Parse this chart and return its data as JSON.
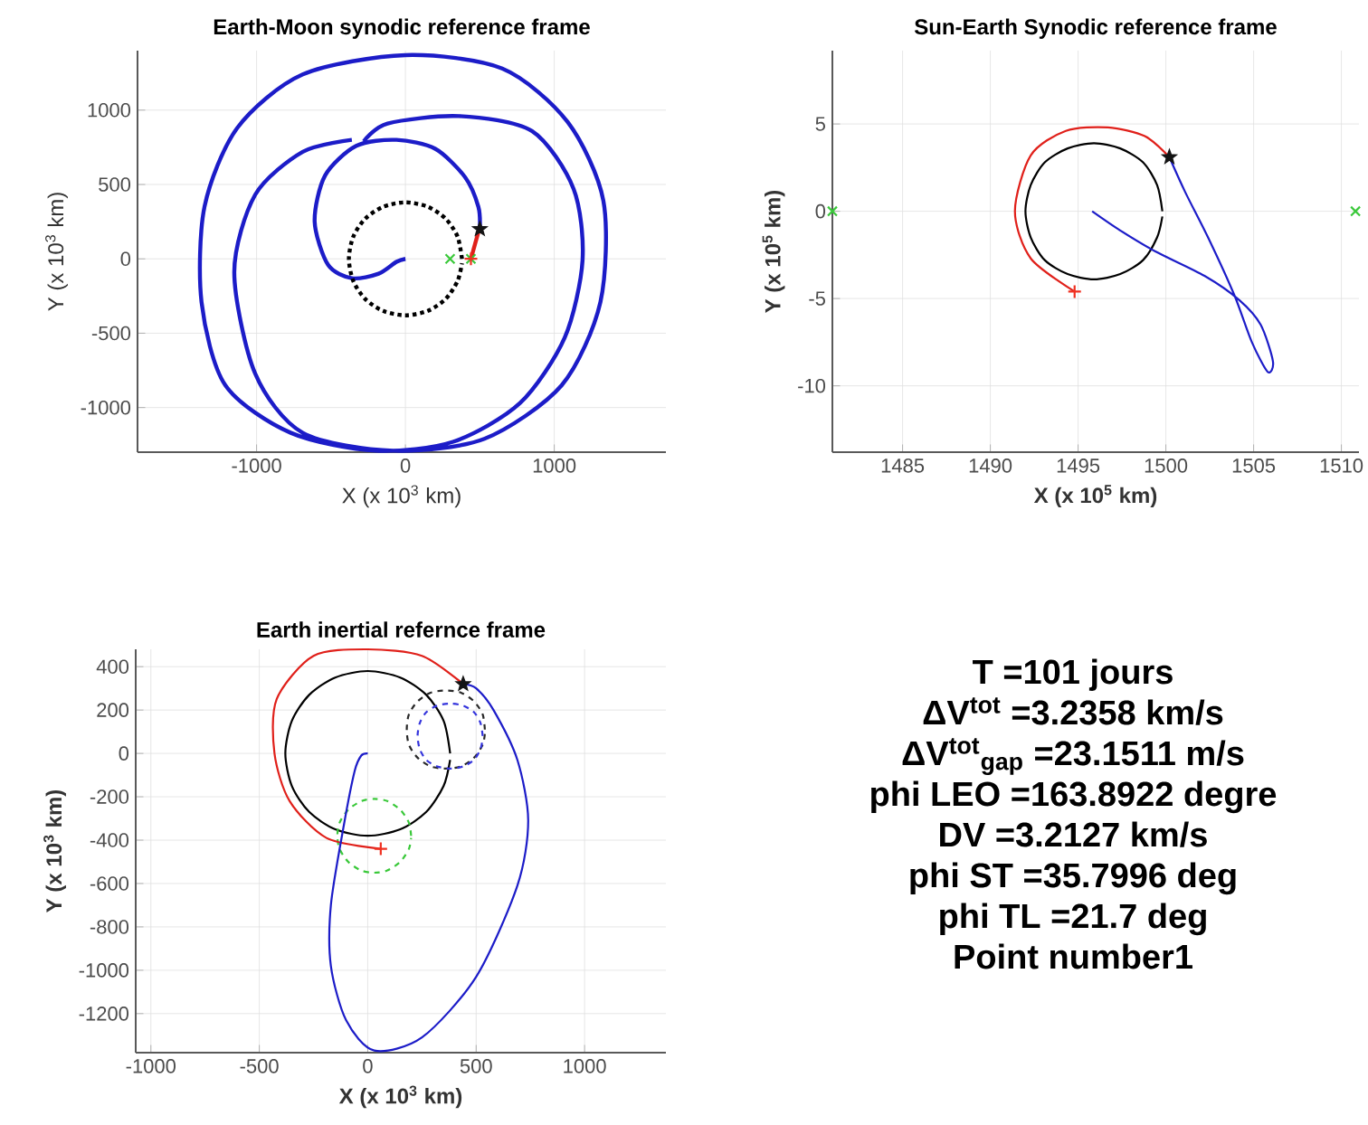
{
  "chart_data": [
    {
      "type": "line",
      "title": "Earth-Moon synodic reference frame",
      "xlabel": "X (x 10$^{3}$ km)",
      "ylabel": "Y (x 10$^{3}$ km)",
      "xlim": [
        -1800,
        1750
      ],
      "ylim": [
        -1300,
        1400
      ],
      "xticks": [
        -1000,
        0,
        1000
      ],
      "yticks": [
        -1000,
        -500,
        0,
        500,
        1000
      ],
      "grid": true,
      "series": [
        {
          "type": "line",
          "color": "#1c1cc8",
          "x": [
            0,
            -60,
            -180,
            -360,
            -520,
            -610,
            -540,
            -330,
            -60,
            200,
            400,
            490,
            500
          ],
          "values": [
            0,
            -20,
            -100,
            -130,
            -40,
            250,
            560,
            760,
            800,
            740,
            550,
            350,
            200
          ]
        },
        {
          "type": "line",
          "color": "#1c1cc8",
          "x": [
            -280,
            -120,
            360,
            850,
            1130,
            1190,
            1070,
            770,
            320,
            -200,
            -770,
            -1210,
            -1370,
            -1350,
            -1130,
            -690,
            0,
            650,
            1090,
            1330,
            1310,
            1050,
            530,
            -80,
            -690,
            -1010,
            -1150,
            -1010,
            -690,
            -360
          ],
          "values": [
            790,
            910,
            960,
            860,
            470,
            -10,
            -530,
            -970,
            -1230,
            -1290,
            -1170,
            -850,
            -290,
            350,
            880,
            1240,
            1370,
            1280,
            920,
            390,
            -290,
            -850,
            -1210,
            -1290,
            -1170,
            -770,
            -90,
            430,
            720,
            800
          ]
        },
        {
          "type": "line",
          "color": "#000000",
          "line_style": "dotted",
          "x": [
            380,
            350,
            270,
            150,
            0,
            -150,
            -270,
            -350,
            -380,
            -350,
            -270,
            -150,
            0,
            150,
            270,
            350,
            380
          ],
          "values": [
            0,
            150,
            270,
            350,
            380,
            350,
            270,
            150,
            0,
            -150,
            -270,
            -350,
            -380,
            -350,
            -270,
            -150,
            -30
          ]
        },
        {
          "type": "line",
          "color": "#e0201a",
          "x": [
            440,
            490
          ],
          "values": [
            0,
            180
          ]
        },
        {
          "type": "scatter",
          "color": "#39c839",
          "marker": "cross",
          "x": [
            300,
            440
          ],
          "values": [
            0,
            0
          ]
        },
        {
          "type": "scatter",
          "color": "#f03020",
          "marker": "plus",
          "x": [
            440
          ],
          "values": [
            0
          ]
        },
        {
          "type": "scatter",
          "color": "#141414",
          "marker": "star",
          "x": [
            500
          ],
          "values": [
            200
          ]
        }
      ]
    },
    {
      "type": "line",
      "title": "Sun-Earth Synodic reference frame",
      "xlabel": "X (x 10$^{5}$ km)",
      "ylabel": "Y (x 10$^{5}$ km)",
      "xlim": [
        1481,
        1511
      ],
      "ylim": [
        -13.8,
        9.2
      ],
      "xticks": [
        1485,
        1490,
        1495,
        1500,
        1505,
        1510
      ],
      "yticks": [
        -10,
        -5,
        0,
        5
      ],
      "grid": true,
      "series": [
        {
          "type": "line",
          "color": "#000000",
          "x": [
            1499.8,
            1499.5,
            1498.7,
            1497.4,
            1495.9,
            1494.4,
            1493.1,
            1492.3,
            1492.0,
            1492.3,
            1493.1,
            1494.4,
            1495.9,
            1497.4,
            1498.7,
            1499.5,
            1499.8
          ],
          "values": [
            0,
            1.5,
            2.8,
            3.6,
            3.9,
            3.6,
            2.8,
            1.5,
            0,
            -1.5,
            -2.8,
            -3.6,
            -3.9,
            -3.6,
            -2.8,
            -1.5,
            -0.3
          ]
        },
        {
          "type": "line",
          "color": "#e0201a",
          "x": [
            1494.8,
            1492.3,
            1491.4,
            1492.3,
            1494.3,
            1496.7,
            1498.8,
            1500.2
          ],
          "values": [
            -4.6,
            -2.7,
            0,
            3.2,
            4.6,
            4.8,
            4.3,
            3.1
          ]
        },
        {
          "type": "line",
          "color": "#1c1cc8",
          "x": [
            1500.2,
            1501.1,
            1502.5,
            1503.9,
            1504.9,
            1505.8,
            1506.1,
            1505.4,
            1504.2,
            1502.2,
            1499.4,
            1497.4,
            1495.8
          ],
          "values": [
            3.1,
            1.1,
            -1.7,
            -4.8,
            -7.5,
            -9.2,
            -8.6,
            -6.5,
            -5.1,
            -3.7,
            -2.3,
            -1.1,
            0
          ]
        },
        {
          "type": "scatter",
          "color": "#f03020",
          "marker": "plus",
          "x": [
            1494.8
          ],
          "values": [
            -4.6
          ]
        },
        {
          "type": "scatter",
          "color": "#141414",
          "marker": "star",
          "x": [
            1500.2
          ],
          "values": [
            3.1
          ]
        },
        {
          "type": "scatter",
          "color": "#39c839",
          "marker": "cross",
          "x": [
            1481,
            1510.8
          ],
          "values": [
            0,
            0
          ]
        }
      ]
    },
    {
      "type": "line",
      "title": "Earth inertial refernce frame",
      "xlabel": "X (x 10$^{3}$ km)",
      "ylabel": "Y (x 10$^{3}$ km)",
      "xlim": [
        -1070,
        1375
      ],
      "ylim": [
        -1380,
        480
      ],
      "xticks": [
        -1000,
        -500,
        0,
        500,
        1000
      ],
      "yticks": [
        -1200,
        -1000,
        -800,
        -600,
        -400,
        -200,
        0,
        200,
        400
      ],
      "grid": true,
      "series": [
        {
          "type": "line",
          "color": "#000000",
          "x": [
            380,
            350,
            270,
            150,
            0,
            -150,
            -270,
            -350,
            -380,
            -350,
            -270,
            -150,
            0,
            150,
            270,
            350,
            380
          ],
          "values": [
            0,
            150,
            270,
            350,
            380,
            350,
            270,
            150,
            0,
            -150,
            -270,
            -350,
            -380,
            -350,
            -270,
            -150,
            -30
          ]
        },
        {
          "type": "line",
          "color": "#282828",
          "line_style": "dashed",
          "x": [
            540,
            530,
            490,
            430,
            360,
            290,
            230,
            190,
            180,
            190,
            230,
            290,
            360,
            430,
            490,
            530,
            540
          ],
          "values": [
            110,
            180,
            240,
            280,
            290,
            280,
            240,
            180,
            110,
            40,
            -20,
            -60,
            -70,
            -60,
            -20,
            40,
            90
          ]
        },
        {
          "type": "line",
          "color": "#3434dc",
          "line_style": "dashed",
          "x": [
            530,
            520,
            490,
            440,
            380,
            320,
            270,
            240,
            230,
            240,
            270,
            320,
            380,
            440,
            490,
            520,
            530
          ],
          "values": [
            80,
            140,
            190,
            220,
            230,
            220,
            190,
            140,
            80,
            20,
            -30,
            -60,
            -70,
            -60,
            -30,
            20,
            70
          ]
        },
        {
          "type": "line",
          "color": "#39c839",
          "line_style": "dashed",
          "x": [
            200,
            190,
            150,
            90,
            30,
            -30,
            -90,
            -130,
            -140,
            -130,
            -90,
            -30,
            30,
            90,
            150,
            190,
            200
          ],
          "values": [
            -380,
            -320,
            -260,
            -220,
            -210,
            -220,
            -260,
            -320,
            -380,
            -440,
            -500,
            -540,
            -550,
            -540,
            -500,
            -440,
            -390
          ]
        },
        {
          "type": "line",
          "color": "#e0201a",
          "x": [
            440,
            250,
            0,
            -250,
            -420,
            -430,
            -360,
            -190,
            60
          ],
          "values": [
            320,
            450,
            480,
            450,
            250,
            0,
            -220,
            -390,
            -440
          ]
        },
        {
          "type": "line",
          "color": "#1c1cc8",
          "x": [
            0,
            -30,
            -60,
            -110,
            -170,
            -170,
            -100,
            30,
            250,
            500,
            690,
            740,
            690,
            580,
            500,
            440
          ],
          "values": [
            0,
            -10,
            -80,
            -330,
            -700,
            -980,
            -1230,
            -1370,
            -1310,
            -1030,
            -610,
            -310,
            -30,
            200,
            300,
            320
          ]
        },
        {
          "type": "scatter",
          "color": "#f03020",
          "marker": "plus",
          "x": [
            60
          ],
          "values": [
            -440
          ]
        },
        {
          "type": "scatter",
          "color": "#141414",
          "marker": "star",
          "x": [
            440
          ],
          "values": [
            320
          ]
        }
      ]
    },
    {
      "type": "other",
      "annotations": [
        "T =101 jours",
        "ΔV$^{tot}$ =3.2358 km/s",
        "ΔV$^{tot}$$_{gap}$ =23.1511 m/s",
        "phi LEO =163.8922 degre",
        "DV =3.2127 km/s",
        "phi ST =35.7996 deg",
        "phi TL =21.7 deg",
        "Point number1"
      ]
    }
  ]
}
